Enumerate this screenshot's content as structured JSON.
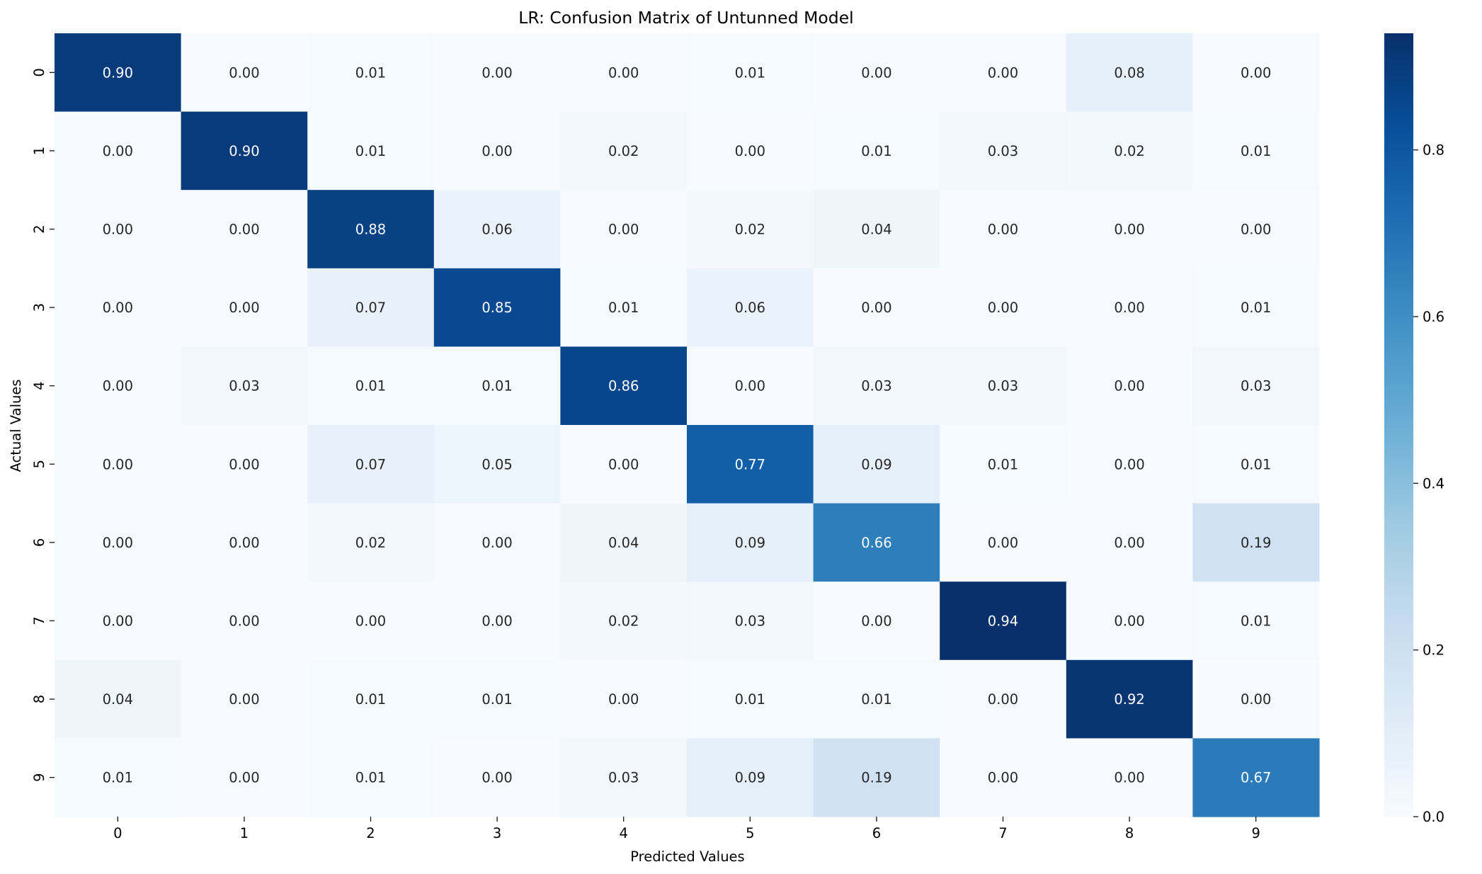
{
  "chart_data": {
    "type": "heatmap",
    "title": "LR: Confusion Matrix of Untunned Model",
    "xlabel": "Predicted Values",
    "ylabel": "Actual Values",
    "x_categories": [
      "0",
      "1",
      "2",
      "3",
      "4",
      "5",
      "6",
      "7",
      "8",
      "9"
    ],
    "y_categories": [
      "0",
      "1",
      "2",
      "3",
      "4",
      "5",
      "6",
      "7",
      "8",
      "9"
    ],
    "values": [
      [
        0.9,
        0.0,
        0.01,
        0.0,
        0.0,
        0.01,
        0.0,
        0.0,
        0.08,
        0.0
      ],
      [
        0.0,
        0.9,
        0.01,
        0.0,
        0.02,
        0.0,
        0.01,
        0.03,
        0.02,
        0.01
      ],
      [
        0.0,
        0.0,
        0.88,
        0.06,
        0.0,
        0.02,
        0.04,
        0.0,
        0.0,
        0.0
      ],
      [
        0.0,
        0.0,
        0.07,
        0.85,
        0.01,
        0.06,
        0.0,
        0.0,
        0.0,
        0.01
      ],
      [
        0.0,
        0.03,
        0.01,
        0.01,
        0.86,
        0.0,
        0.03,
        0.03,
        0.0,
        0.03
      ],
      [
        0.0,
        0.0,
        0.07,
        0.05,
        0.0,
        0.77,
        0.09,
        0.01,
        0.0,
        0.01
      ],
      [
        0.0,
        0.0,
        0.02,
        0.0,
        0.04,
        0.09,
        0.66,
        0.0,
        0.0,
        0.19
      ],
      [
        0.0,
        0.0,
        0.0,
        0.0,
        0.02,
        0.03,
        0.0,
        0.94,
        0.0,
        0.01
      ],
      [
        0.04,
        0.0,
        0.01,
        0.01,
        0.0,
        0.01,
        0.01,
        0.0,
        0.92,
        0.0
      ],
      [
        0.01,
        0.0,
        0.01,
        0.0,
        0.03,
        0.09,
        0.19,
        0.0,
        0.0,
        0.67
      ]
    ],
    "annotation_format": "2 decimals",
    "colormap": "Blues",
    "colorbar": {
      "range": [
        0.0,
        0.94
      ],
      "ticks": [
        0.0,
        0.2,
        0.4,
        0.6,
        0.8
      ],
      "tick_labels": [
        "0.0",
        "0.2",
        "0.4",
        "0.6",
        "0.8"
      ]
    },
    "grid": false
  }
}
